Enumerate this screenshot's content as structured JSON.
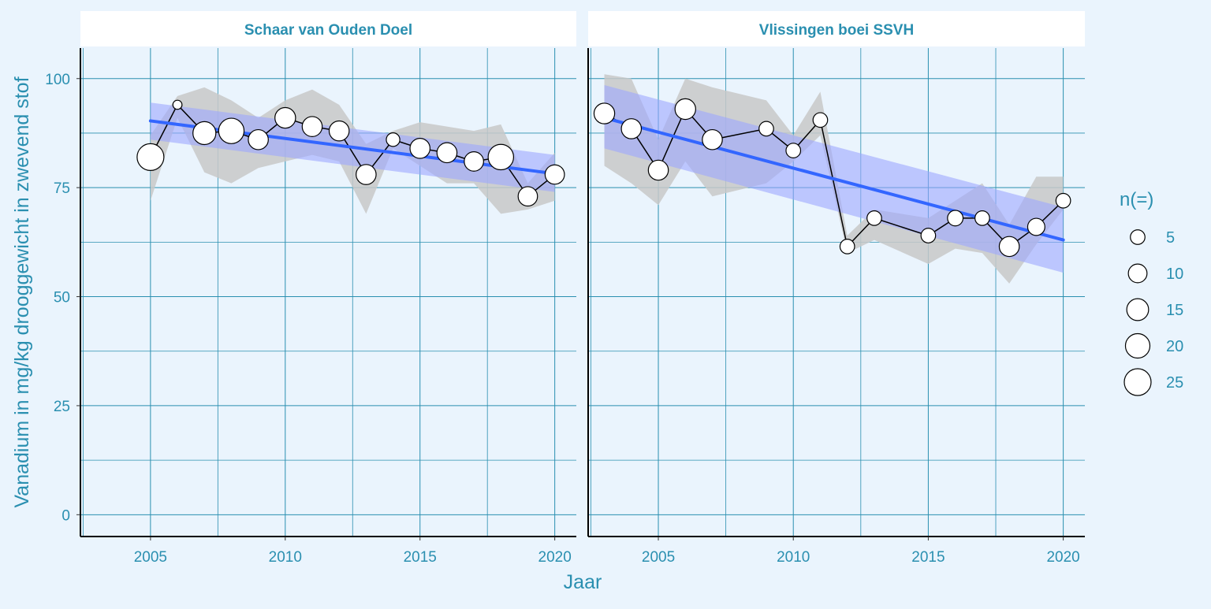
{
  "chart_data": {
    "type": "scatter",
    "ylabel": "Vanadium in mg/kg drooggewicht in zwevend stof",
    "xlabel": "Jaar",
    "ylim": [
      -5,
      107
    ],
    "y_ticks": [
      0,
      25,
      50,
      75,
      100
    ],
    "x_ticks": [
      2005,
      2010,
      2015,
      2020
    ],
    "grid": true,
    "legend": {
      "title": "n(=)",
      "placement": "right",
      "entries": [
        {
          "label": "5",
          "n": 5
        },
        {
          "label": "10",
          "n": 10
        },
        {
          "label": "15",
          "n": 15
        },
        {
          "label": "20",
          "n": 20
        },
        {
          "label": "25",
          "n": 25
        }
      ]
    },
    "colors": {
      "background": "#eaf4fd",
      "grid": "#2a8fb0",
      "axis_text": "#2a8fb0",
      "strip_text": "#2a8fb0",
      "trend": "#3366ff",
      "trend_band": "#9da6ff",
      "range_band": "#c8c8c8",
      "point_fill": "#ffffff",
      "point_stroke": "#000000"
    },
    "panels": [
      {
        "title": "Schaar van Ouden Doel",
        "xlim": [
          2002.4,
          2020.8
        ],
        "points": [
          {
            "x": 2005,
            "y": 82,
            "n": 25,
            "lo": 72,
            "hi": 87
          },
          {
            "x": 2006,
            "y": 94,
            "n": 1,
            "lo": 91,
            "hi": 96
          },
          {
            "x": 2007,
            "y": 87.5,
            "n": 17,
            "lo": 78.5,
            "hi": 98
          },
          {
            "x": 2008,
            "y": 88,
            "n": 22,
            "lo": 76,
            "hi": 95
          },
          {
            "x": 2009,
            "y": 86,
            "n": 12,
            "lo": 79.5,
            "hi": 91
          },
          {
            "x": 2010,
            "y": 91,
            "n": 13,
            "lo": 81,
            "hi": 95
          },
          {
            "x": 2011,
            "y": 89,
            "n": 12,
            "lo": 82.5,
            "hi": 97.5
          },
          {
            "x": 2012,
            "y": 88,
            "n": 12,
            "lo": 81,
            "hi": 94
          },
          {
            "x": 2013,
            "y": 78,
            "n": 12,
            "lo": 69,
            "hi": 85
          },
          {
            "x": 2014,
            "y": 86,
            "n": 4,
            "lo": 84,
            "hi": 88
          },
          {
            "x": 2015,
            "y": 84,
            "n": 12,
            "lo": 80,
            "hi": 90
          },
          {
            "x": 2016,
            "y": 83,
            "n": 12,
            "lo": 76,
            "hi": 89
          },
          {
            "x": 2017,
            "y": 81,
            "n": 11,
            "lo": 76,
            "hi": 88
          },
          {
            "x": 2018,
            "y": 82,
            "n": 22,
            "lo": 69,
            "hi": 89.5
          },
          {
            "x": 2019,
            "y": 73,
            "n": 11,
            "lo": 70,
            "hi": 76
          },
          {
            "x": 2020,
            "y": 78,
            "n": 11,
            "lo": 72,
            "hi": 83
          }
        ],
        "trend": {
          "x": [
            2005,
            2020
          ],
          "y": [
            90.3,
            78.2
          ]
        },
        "trend_band": {
          "x": [
            2005,
            2020
          ],
          "lower": [
            86,
            74
          ],
          "upper": [
            94.5,
            82.5
          ]
        }
      },
      {
        "title": "Vlissingen boei SSVH",
        "xlim": [
          2002.4,
          2020.8
        ],
        "points": [
          {
            "x": 2003,
            "y": 92,
            "n": 13,
            "lo": 80,
            "hi": 101
          },
          {
            "x": 2004,
            "y": 88.5,
            "n": 12,
            "lo": 76,
            "hi": 100
          },
          {
            "x": 2005,
            "y": 79,
            "n": 12,
            "lo": 71,
            "hi": 86
          },
          {
            "x": 2006,
            "y": 93,
            "n": 13,
            "lo": 81,
            "hi": 100
          },
          {
            "x": 2007,
            "y": 86,
            "n": 12,
            "lo": 73,
            "hi": 98
          },
          {
            "x": 2009,
            "y": 88.5,
            "n": 5,
            "lo": 76,
            "hi": 95
          },
          {
            "x": 2010,
            "y": 83.5,
            "n": 5,
            "lo": 81,
            "hi": 87
          },
          {
            "x": 2011,
            "y": 90.5,
            "n": 5,
            "lo": 87,
            "hi": 97
          },
          {
            "x": 2012,
            "y": 61.5,
            "n": 5,
            "lo": 60,
            "hi": 64
          },
          {
            "x": 2013,
            "y": 68,
            "n": 5,
            "lo": 63,
            "hi": 70
          },
          {
            "x": 2015,
            "y": 64,
            "n": 5,
            "lo": 57.5,
            "hi": 68
          },
          {
            "x": 2016,
            "y": 68,
            "n": 6,
            "lo": 61,
            "hi": 72
          },
          {
            "x": 2017,
            "y": 68,
            "n": 5,
            "lo": 60,
            "hi": 76
          },
          {
            "x": 2018,
            "y": 61.5,
            "n": 12,
            "lo": 53,
            "hi": 66.5
          },
          {
            "x": 2019,
            "y": 66,
            "n": 8,
            "lo": 62,
            "hi": 77.5
          },
          {
            "x": 2020,
            "y": 72,
            "n": 5,
            "lo": 70,
            "hi": 77.5
          }
        ],
        "trend": {
          "x": [
            2003,
            2020
          ],
          "y": [
            91,
            63
          ]
        },
        "trend_band": {
          "x": [
            2003,
            2020
          ],
          "lower": [
            84,
            55.5
          ],
          "upper": [
            98.5,
            70.5
          ]
        }
      }
    ]
  }
}
